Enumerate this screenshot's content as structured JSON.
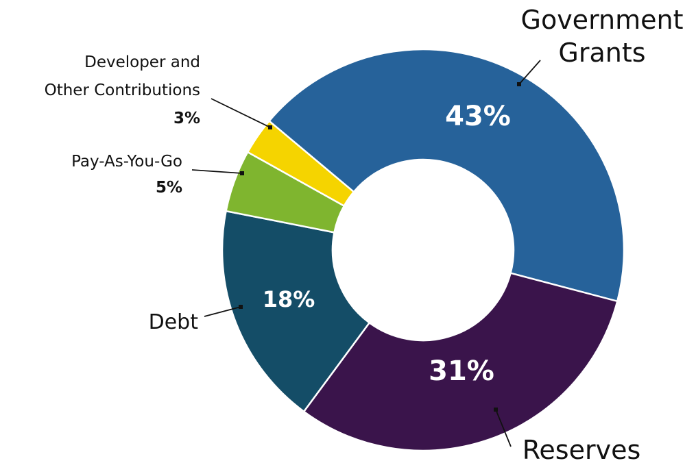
{
  "chart_data": {
    "type": "pie",
    "title": "",
    "slices": [
      {
        "label": "Government Grants",
        "value": 43,
        "display": "43%",
        "color": "#26629a"
      },
      {
        "label": "Reserves",
        "value": 31,
        "display": "31%",
        "color": "#3a144b"
      },
      {
        "label": "Debt",
        "value": 18,
        "display": "18%",
        "color": "#144d67"
      },
      {
        "label": "Pay-As-You-Go",
        "value": 5,
        "display": "5%",
        "color": "#7fb52f"
      },
      {
        "label": "Developer and Other Contributions",
        "value": 3,
        "display": "3%",
        "color": "#f5d400"
      }
    ]
  },
  "labels": {
    "grants": {
      "line1": "Government",
      "line2": "Grants"
    },
    "reserves": "Reserves",
    "debt": "Debt",
    "paygo": {
      "name": "Pay-As-You-Go",
      "pct": "5%"
    },
    "developer": {
      "line1": "Developer and",
      "line2": "Other Contributions",
      "pct": "3%"
    }
  },
  "inner_labels": {
    "grants": "43%",
    "reserves": "31%",
    "debt": "18%"
  }
}
